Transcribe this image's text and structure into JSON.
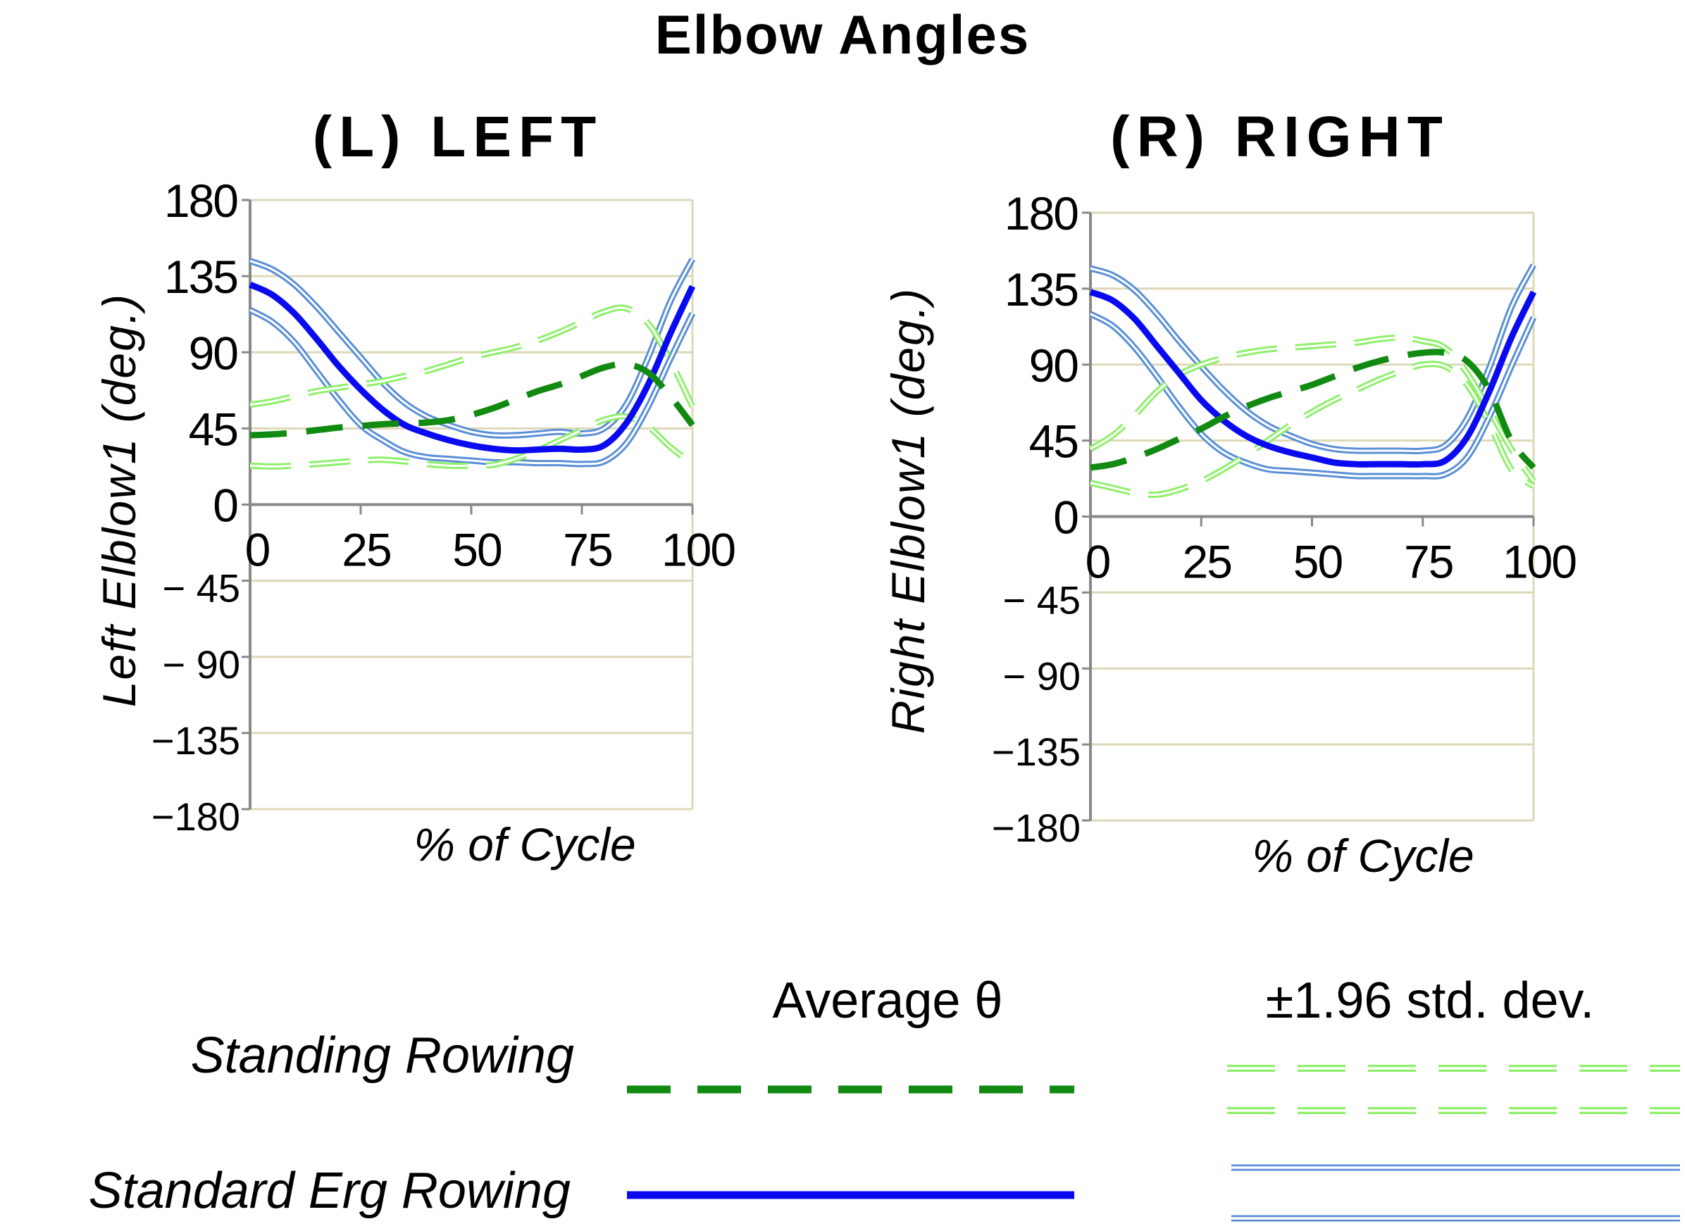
{
  "figure_title": "Elbow Angles",
  "chart_data": [
    {
      "type": "line",
      "title": "(L) LEFT",
      "xlabel": "% of Cycle",
      "ylabel": "Left Elblow1 (deg.)",
      "xlim": [
        0,
        100
      ],
      "ylim": [
        -180,
        180
      ],
      "x_ticks": [
        "0",
        "25",
        "50",
        "75",
        "100"
      ],
      "y_ticks": [
        "180",
        "135",
        "90",
        "45",
        "0",
        "− 45",
        "− 90",
        "−135",
        "−180"
      ],
      "grid": true,
      "x": [
        0,
        5,
        10,
        15,
        20,
        25,
        30,
        35,
        40,
        45,
        50,
        55,
        60,
        65,
        70,
        75,
        80,
        85,
        90,
        95,
        100
      ],
      "series": [
        {
          "role": "standing_avg",
          "values": [
            41,
            41.5,
            42.5,
            44,
            45.5,
            46.5,
            47.5,
            48,
            48.5,
            50,
            53,
            57,
            62,
            67,
            71,
            76,
            81,
            83,
            78,
            64,
            47
          ]
        },
        {
          "role": "standing_upper",
          "values": [
            59,
            61,
            64,
            67,
            69,
            71,
            73,
            76,
            79,
            83,
            87,
            90,
            93,
            97,
            102,
            108,
            114,
            116,
            107,
            85,
            58
          ]
        },
        {
          "role": "standing_lower",
          "values": [
            23,
            22.5,
            23,
            24,
            25,
            26,
            26.5,
            25.5,
            24,
            23,
            23,
            23.5,
            27,
            32,
            38,
            44,
            50,
            52,
            46,
            34,
            24
          ]
        },
        {
          "role": "standard_avg",
          "values": [
            130,
            124,
            113,
            98,
            82,
            68,
            56,
            47,
            42,
            38,
            35,
            33,
            32,
            32.5,
            33,
            32.5,
            35,
            48,
            71,
            101,
            129
          ]
        },
        {
          "role": "standard_upper",
          "values": [
            144,
            139,
            130,
            117,
            102,
            87,
            72,
            60,
            52,
            47,
            43,
            41,
            41,
            42,
            43,
            42,
            45,
            59,
            87,
            120,
            145
          ]
        },
        {
          "role": "standard_lower",
          "values": [
            115,
            108,
            96,
            79,
            62,
            47,
            38,
            31,
            28,
            27,
            26,
            25,
            25,
            24.5,
            24.5,
            24,
            25.5,
            36,
            58,
            86,
            113
          ]
        }
      ]
    },
    {
      "type": "line",
      "title": "(R) RIGHT",
      "xlabel": "% of Cycle",
      "ylabel": "Right Elblow1 (deg.)",
      "xlim": [
        0,
        100
      ],
      "ylim": [
        -180,
        180
      ],
      "x_ticks": [
        "0",
        "25",
        "50",
        "75",
        "100"
      ],
      "y_ticks": [
        "180",
        "135",
        "90",
        "45",
        "0",
        "− 45",
        "− 90",
        "−135",
        "−180"
      ],
      "grid": true,
      "x": [
        0,
        5,
        10,
        15,
        20,
        25,
        30,
        35,
        40,
        45,
        50,
        55,
        60,
        65,
        70,
        75,
        80,
        85,
        90,
        95,
        100
      ],
      "series": [
        {
          "role": "standing_avg",
          "values": [
            29,
            31,
            35,
            40,
            46,
            52,
            59,
            65,
            70,
            74,
            78,
            83,
            88,
            92,
            95,
            97,
            97,
            92,
            75,
            45,
            29
          ]
        },
        {
          "role": "standing_upper",
          "values": [
            40,
            48,
            60,
            74,
            84,
            90,
            94,
            97,
            99,
            100,
            101,
            102,
            103,
            105,
            106,
            104,
            100,
            85,
            63,
            40,
            21
          ]
        },
        {
          "role": "standing_lower",
          "values": [
            20,
            17,
            14,
            13,
            16,
            21,
            28,
            36,
            45,
            54,
            62,
            69,
            75,
            81,
            86,
            90,
            89,
            78,
            55,
            28,
            18
          ]
        },
        {
          "role": "standard_avg",
          "values": [
            133,
            128,
            117,
            101,
            85,
            69,
            57,
            48,
            42,
            38,
            35,
            32,
            31,
            31,
            31,
            31,
            33,
            47,
            74,
            106,
            133
          ]
        },
        {
          "role": "standard_upper",
          "values": [
            147,
            143,
            134,
            120,
            104,
            89,
            75,
            63,
            54,
            48,
            43,
            40,
            39,
            39,
            39,
            39,
            42,
            58,
            88,
            124,
            149
          ]
        },
        {
          "role": "standard_lower",
          "values": [
            120,
            113,
            100,
            83,
            65,
            49,
            38,
            32,
            28,
            27,
            26,
            25,
            24,
            24,
            24,
            24,
            25,
            35,
            59,
            89,
            118
          ]
        }
      ]
    }
  ],
  "legend": {
    "average_header": "Average θ",
    "sd_header": "±1.96 std. dev.",
    "rows": [
      {
        "label": "Standing Rowing"
      },
      {
        "label": "Standard Erg Rowing"
      }
    ]
  },
  "colors": {
    "standing_avg": "#118a11",
    "standing_sd": "#8ef06a",
    "standard_avg": "#0a0af0",
    "standard_sd": "#5a8fd6",
    "grid": "#ddd8b8",
    "axis": "#888888"
  }
}
